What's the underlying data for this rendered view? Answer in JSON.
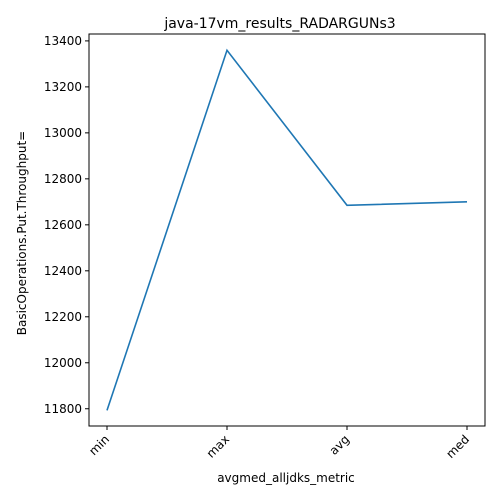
{
  "chart_data": {
    "type": "line",
    "title": "java-17vm_results_RADARGUNs3",
    "xlabel": "avgmed_alljdks_metric",
    "ylabel": "BasicOperations.Put.Throughput=",
    "categories": [
      "min",
      "max",
      "avg",
      "med"
    ],
    "series": [
      {
        "values": [
          11793,
          13359,
          12685,
          12700
        ]
      }
    ],
    "ylim": [
      11725,
      13430
    ],
    "yticks": [
      11800,
      12000,
      12200,
      12400,
      12600,
      12800,
      13000,
      13200,
      13400
    ],
    "ytick_labels": [
      "11800",
      "12000",
      "12200",
      "12400",
      "12600",
      "12800",
      "13000",
      "13200",
      "13400"
    ],
    "grid": false,
    "legend": "none",
    "colors": {
      "line": "#1f77b4",
      "axes": "#000000",
      "background": "#ffffff"
    }
  }
}
